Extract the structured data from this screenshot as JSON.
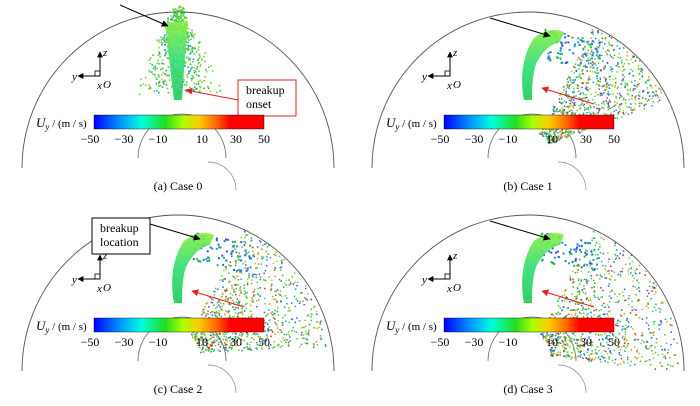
{
  "figure": {
    "panels": [
      {
        "caption": "(a) Case 0",
        "annotation": [
          "breakup",
          "onset"
        ],
        "spray": "centered"
      },
      {
        "caption": "(b) Case 1",
        "annotation": [],
        "spray": "right-1"
      },
      {
        "caption": "(c) Case 2",
        "annotation": [
          "breakup",
          "location"
        ],
        "spray": "right-2"
      },
      {
        "caption": "(d) Case 3",
        "annotation": [],
        "spray": "right-3"
      }
    ],
    "colorbar": {
      "label_main": "U",
      "label_sub": "y",
      "label_units": " / (m / s)",
      "ticks": [
        "−50",
        "−30",
        "−10",
        "10",
        "30",
        "50"
      ]
    },
    "axes_labels": {
      "z": "z",
      "y": "y",
      "x": "x",
      "origin": "O"
    },
    "colors": {
      "colormap": [
        "#0000ff",
        "#00aaff",
        "#00ffcc",
        "#33dd33",
        "#aaff00",
        "#ffdd00",
        "#ff7700",
        "#ff0000",
        "#ff0000"
      ],
      "black_arrow": "#000000",
      "red_arrow": "#e02020",
      "annotation_border": "#e02020",
      "annotation_border_alt": "#000000"
    }
  }
}
